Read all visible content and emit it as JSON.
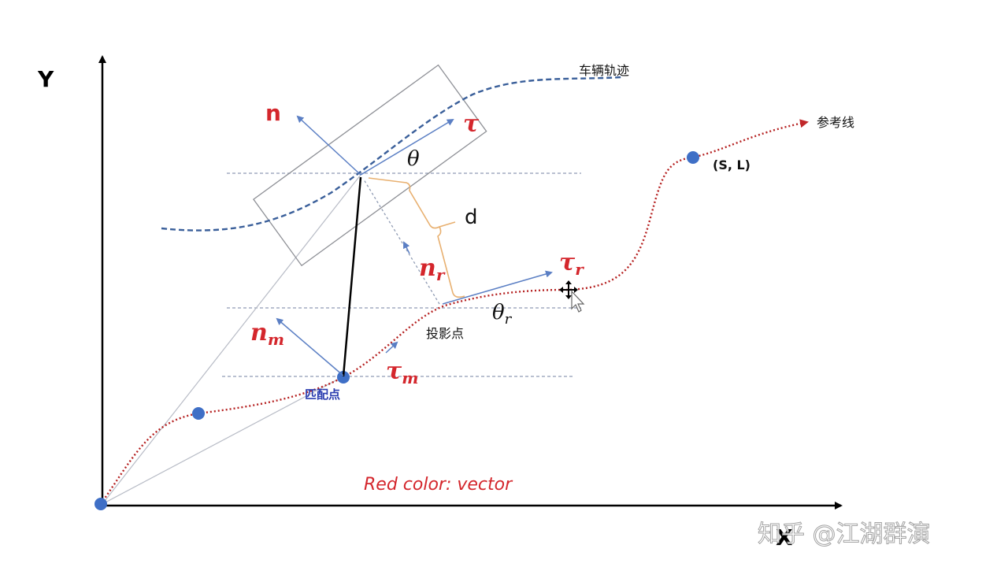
{
  "axes": {
    "y_label": "Y",
    "x_label": "X"
  },
  "labels": {
    "vehicle_trajectory": "车辆轨迹",
    "reference_line": "参考线",
    "sl_point": "(S, L)",
    "projection_point": "投影点",
    "match_point": "匹配点",
    "d": "d",
    "theta": "θ",
    "theta_r": "θ",
    "theta_r_sub": "r",
    "n": "n",
    "tau": "τ",
    "n_r": "n",
    "n_r_sub": "r",
    "tau_r": "τ",
    "tau_r_sub": "r",
    "n_m": "n",
    "n_m_sub": "m",
    "tau_m": "τ",
    "tau_m_sub": "m",
    "caption": "Red color: vector",
    "watermark": "知乎 @江湖群演"
  },
  "colors": {
    "vector_red": "#d4262c",
    "reference_line": "#b52020",
    "trajectory_blue": "#3a5f9a",
    "point_blue": "#3f6fc6",
    "arrow_blue": "#5b7fc4",
    "bracket_orange": "#e8b070",
    "guide_gray": "#8f9bb3"
  }
}
